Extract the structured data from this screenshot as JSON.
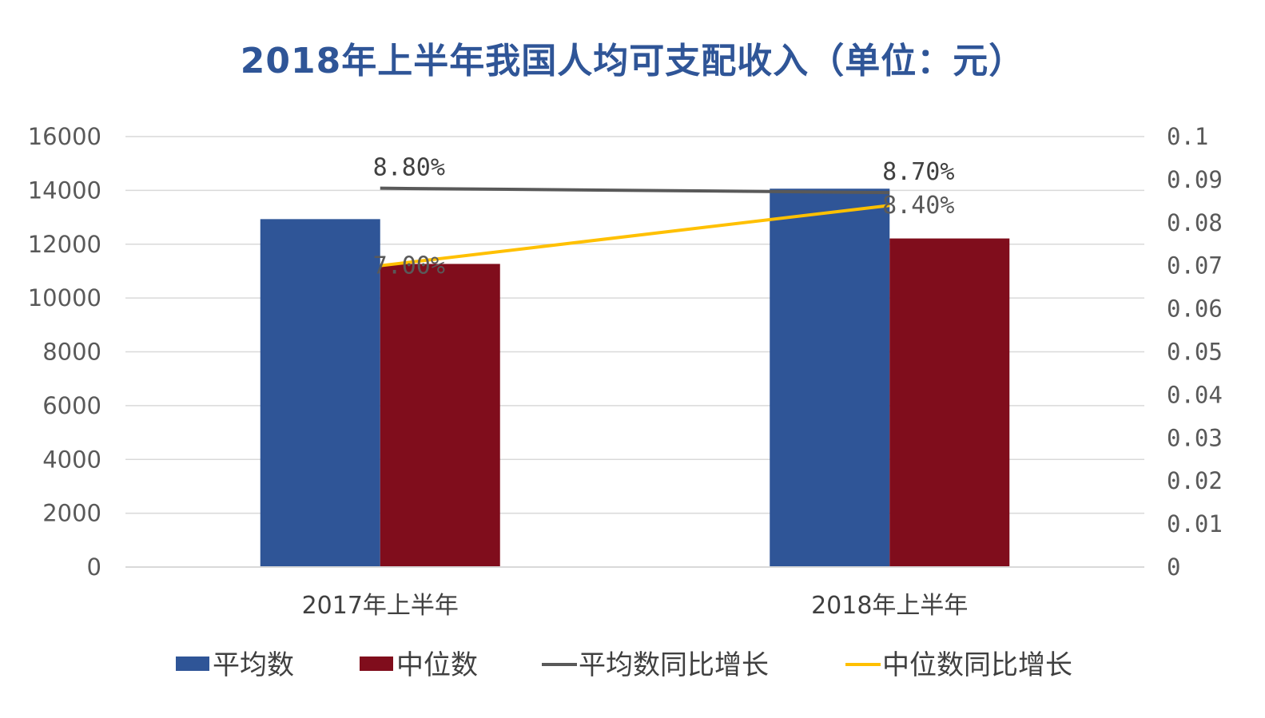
{
  "chart_data": {
    "type": "bar",
    "title": "2018年上半年我国人均可支配收入（单位：元）",
    "categories": [
      "2017年上半年",
      "2018年上半年"
    ],
    "series": [
      {
        "name": "平均数",
        "kind": "bar",
        "axis": "left",
        "color": "#2F5597",
        "values": [
          12932,
          14063
        ]
      },
      {
        "name": "中位数",
        "kind": "bar",
        "axis": "left",
        "color": "#800D1C",
        "values": [
          11267,
          12213
        ]
      },
      {
        "name": "平均数同比增长",
        "kind": "line",
        "axis": "right",
        "color": "#595959",
        "values": [
          0.088,
          0.087
        ],
        "labels": [
          "8.80%",
          "8.70%"
        ]
      },
      {
        "name": "中位数同比增长",
        "kind": "line",
        "axis": "right",
        "color": "#FFC000",
        "values": [
          0.07,
          0.084
        ],
        "labels": [
          "7.00%",
          "8.40%"
        ]
      }
    ],
    "yticks_left": [
      "0",
      "2000",
      "4000",
      "6000",
      "8000",
      "10000",
      "12000",
      "14000",
      "16000"
    ],
    "yticks_right": [
      "0",
      "0.01",
      "0.02",
      "0.03",
      "0.04",
      "0.05",
      "0.06",
      "0.07",
      "0.08",
      "0.09",
      "0.1"
    ],
    "ylim_left": [
      0,
      16000
    ],
    "ylim_right": [
      0,
      0.1
    ],
    "grid": true,
    "legend_position": "bottom"
  }
}
